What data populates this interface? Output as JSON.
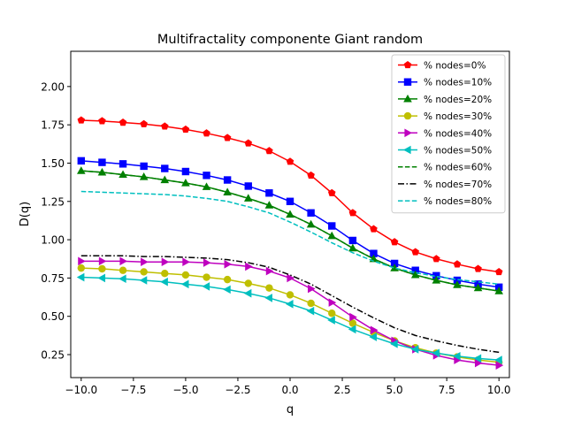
{
  "chart_data": {
    "type": "line",
    "title": "Multifractality componente Giant random",
    "xlabel": "q",
    "ylabel": "D(q)",
    "xlim": [
      -10.5,
      10.5
    ],
    "ylim": [
      0.1,
      2.23
    ],
    "xticks": [
      "−10.0",
      "−7.5",
      "−5.0",
      "−2.5",
      "0.0",
      "2.5",
      "5.0",
      "7.5",
      "10.0"
    ],
    "xtick_values": [
      -10,
      -7.5,
      -5,
      -2.5,
      0,
      2.5,
      5,
      7.5,
      10
    ],
    "yticks": [
      "0.25",
      "0.50",
      "0.75",
      "1.00",
      "1.25",
      "1.50",
      "1.75",
      "2.00"
    ],
    "ytick_values": [
      0.25,
      0.5,
      0.75,
      1.0,
      1.25,
      1.5,
      1.75,
      2.0
    ],
    "grid": false,
    "legend_position": "top-right",
    "x": [
      -10,
      -9,
      -8,
      -7,
      -6,
      -5,
      -4,
      -3,
      -2,
      -1,
      0,
      1,
      2,
      3,
      4,
      5,
      6,
      7,
      8,
      9,
      10
    ],
    "series": [
      {
        "name": "% nodes=0%",
        "color": "#ff0000",
        "marker": "pentagon",
        "dash": "solid",
        "values": [
          1.78,
          1.775,
          1.765,
          1.755,
          1.74,
          1.72,
          1.695,
          1.665,
          1.63,
          1.58,
          1.51,
          1.42,
          1.305,
          1.175,
          1.07,
          0.985,
          0.92,
          0.875,
          0.84,
          0.81,
          0.79
        ]
      },
      {
        "name": "% nodes=10%",
        "color": "#0000ff",
        "marker": "square",
        "dash": "solid",
        "values": [
          1.515,
          1.505,
          1.495,
          1.48,
          1.465,
          1.445,
          1.42,
          1.39,
          1.35,
          1.305,
          1.25,
          1.175,
          1.09,
          0.995,
          0.91,
          0.845,
          0.8,
          0.765,
          0.735,
          0.71,
          0.69
        ]
      },
      {
        "name": "% nodes=20%",
        "color": "#008000",
        "marker": "triangle-up",
        "dash": "solid",
        "values": [
          1.45,
          1.44,
          1.425,
          1.41,
          1.39,
          1.37,
          1.345,
          1.31,
          1.27,
          1.225,
          1.165,
          1.1,
          1.025,
          0.945,
          0.875,
          0.815,
          0.77,
          0.735,
          0.705,
          0.685,
          0.665
        ]
      },
      {
        "name": "% nodes=30%",
        "color": "#bfbf00",
        "marker": "circle",
        "dash": "solid",
        "values": [
          0.815,
          0.81,
          0.8,
          0.79,
          0.78,
          0.77,
          0.755,
          0.74,
          0.715,
          0.685,
          0.64,
          0.585,
          0.52,
          0.455,
          0.395,
          0.34,
          0.295,
          0.26,
          0.235,
          0.215,
          0.2
        ]
      },
      {
        "name": "% nodes=40%",
        "color": "#bf00bf",
        "marker": "triangle-right",
        "dash": "solid",
        "values": [
          0.86,
          0.86,
          0.86,
          0.855,
          0.855,
          0.855,
          0.85,
          0.84,
          0.825,
          0.795,
          0.75,
          0.68,
          0.59,
          0.495,
          0.41,
          0.34,
          0.285,
          0.245,
          0.215,
          0.195,
          0.18
        ]
      },
      {
        "name": "% nodes=50%",
        "color": "#00bfbf",
        "marker": "triangle-left",
        "dash": "solid",
        "values": [
          0.755,
          0.75,
          0.745,
          0.735,
          0.725,
          0.71,
          0.695,
          0.675,
          0.65,
          0.62,
          0.58,
          0.535,
          0.475,
          0.415,
          0.365,
          0.32,
          0.285,
          0.26,
          0.24,
          0.225,
          0.215
        ]
      },
      {
        "name": "% nodes=60%",
        "color": "#008000",
        "marker": "none",
        "dash": "dashed",
        "values": [
          1.45,
          1.44,
          1.425,
          1.41,
          1.39,
          1.37,
          1.345,
          1.31,
          1.27,
          1.225,
          1.165,
          1.1,
          1.025,
          0.945,
          0.875,
          0.815,
          0.77,
          0.735,
          0.705,
          0.685,
          0.665
        ]
      },
      {
        "name": "% nodes=70%",
        "color": "#000000",
        "marker": "none",
        "dash": "dashdot",
        "values": [
          0.895,
          0.895,
          0.895,
          0.89,
          0.89,
          0.885,
          0.88,
          0.87,
          0.85,
          0.82,
          0.77,
          0.71,
          0.635,
          0.56,
          0.49,
          0.425,
          0.375,
          0.34,
          0.31,
          0.285,
          0.265
        ]
      },
      {
        "name": "% nodes=80%",
        "color": "#00bfbf",
        "marker": "none",
        "dash": "dashed",
        "values": [
          1.315,
          1.31,
          1.305,
          1.3,
          1.295,
          1.285,
          1.27,
          1.25,
          1.215,
          1.175,
          1.115,
          1.05,
          0.98,
          0.915,
          0.86,
          0.815,
          0.785,
          0.76,
          0.74,
          0.725,
          0.71
        ]
      }
    ]
  }
}
